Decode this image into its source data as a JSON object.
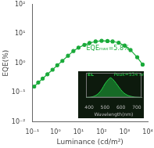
{
  "chart_data": [
    {
      "type": "line",
      "xlabel": "Luminance (cd/m²)",
      "ylabel": "EQE(%)",
      "log": true,
      "x": [
        0.12,
        0.18,
        0.28,
        0.45,
        0.75,
        1.2,
        2.0,
        3.5,
        6.0,
        10,
        18,
        30,
        55,
        100,
        180,
        300,
        550,
        1000,
        1800,
        3500,
        6000
      ],
      "values": [
        0.16,
        0.22,
        0.3,
        0.42,
        0.6,
        0.85,
        1.2,
        1.8,
        2.6,
        3.4,
        4.2,
        4.9,
        5.5,
        5.8,
        5.7,
        5.5,
        5.0,
        4.0,
        2.8,
        1.6,
        0.9
      ],
      "color": "#1aaa3a",
      "marker": "circle",
      "xlim": [
        0.1,
        10000
      ],
      "ylim": [
        0.01,
        100
      ],
      "xticks": [
        {
          "value": 0.1,
          "label": "10⁻¹"
        },
        {
          "value": 1,
          "label": "10⁰"
        },
        {
          "value": 10,
          "label": "10¹"
        },
        {
          "value": 100,
          "label": "10²"
        },
        {
          "value": 1000,
          "label": "10³"
        },
        {
          "value": 10000,
          "label": "10⁴"
        }
      ],
      "yticks": [
        {
          "value": 0.01,
          "label": "10⁻²"
        },
        {
          "value": 0.1,
          "label": "10⁻¹"
        },
        {
          "value": 1,
          "label": "10⁰"
        },
        {
          "value": 10,
          "label": "10¹"
        },
        {
          "value": 100,
          "label": "10²"
        }
      ],
      "grid": false,
      "annotations": [
        {
          "text": "EQEₘₐₓ=5.8%",
          "x": 22,
          "y": 2.8
        }
      ]
    },
    {
      "type": "area",
      "xlabel": "Wavelength(nm)",
      "x": [
        380,
        400,
        420,
        440,
        460,
        480,
        500,
        520,
        534,
        550,
        570,
        590,
        610,
        630,
        650,
        670,
        690,
        710,
        730
      ],
      "values": [
        0.0,
        0.01,
        0.04,
        0.1,
        0.22,
        0.42,
        0.7,
        0.9,
        1.0,
        0.92,
        0.72,
        0.5,
        0.3,
        0.17,
        0.09,
        0.05,
        0.02,
        0.01,
        0.0
      ],
      "color": "#22cc44",
      "xlim": [
        380,
        730
      ],
      "ylim": [
        0,
        1.25
      ],
      "xticks": [
        400,
        500,
        600,
        700
      ],
      "tick_labels": "x",
      "grid": false,
      "annotations": [
        {
          "text": "EL",
          "x": 390,
          "y": 1.08
        },
        {
          "text": "Peak=534 nm",
          "x": 555,
          "y": 1.08
        }
      ]
    }
  ]
}
